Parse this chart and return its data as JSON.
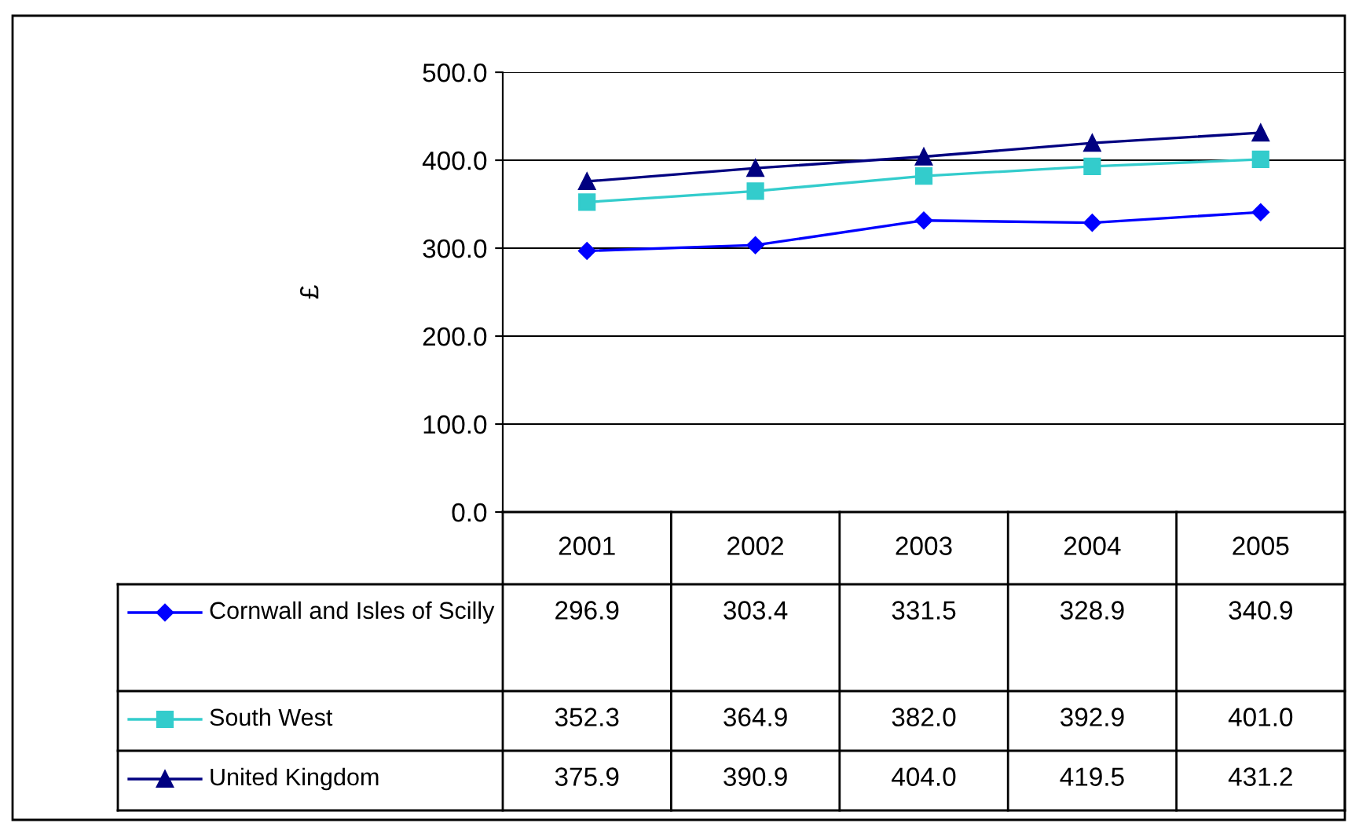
{
  "chart_data": {
    "type": "line",
    "ylabel": "£",
    "categories": [
      "2001",
      "2002",
      "2003",
      "2004",
      "2005"
    ],
    "ylim": [
      0,
      500
    ],
    "yticks": [
      {
        "value": 0,
        "label": "0.0"
      },
      {
        "value": 100,
        "label": "100.0"
      },
      {
        "value": 200,
        "label": "200.0"
      },
      {
        "value": 300,
        "label": "300.0"
      },
      {
        "value": 400,
        "label": "400.0"
      },
      {
        "value": 500,
        "label": "500.0"
      }
    ],
    "grid": "y",
    "legend": "bottom",
    "series": [
      {
        "name": "Cornwall and Isles of Scilly",
        "color": "#0000ff",
        "marker": "diamond",
        "values": [
          296.9,
          303.4,
          331.5,
          328.9,
          340.9
        ],
        "value_labels": [
          "296.9",
          "303.4",
          "331.5",
          "328.9",
          "340.9"
        ]
      },
      {
        "name": "South West",
        "color": "#33cccc",
        "marker": "square",
        "values": [
          352.3,
          364.9,
          382.0,
          392.9,
          401.0
        ],
        "value_labels": [
          "352.3",
          "364.9",
          "382.0",
          "392.9",
          "401.0"
        ]
      },
      {
        "name": "United Kingdom",
        "color": "#000080",
        "marker": "triangle",
        "values": [
          375.9,
          390.9,
          404.0,
          419.5,
          431.2
        ],
        "value_labels": [
          "375.9",
          "390.9",
          "404.0",
          "419.5",
          "431.2"
        ]
      }
    ]
  }
}
